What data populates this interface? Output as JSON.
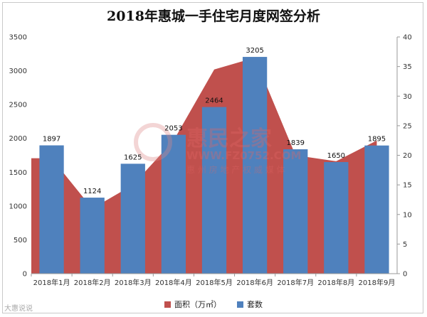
{
  "title": "2018年惠城一手住宅月度网签分析",
  "chart_data": {
    "type": "bar+area",
    "title": "2018年惠城一手住宅月度网签分析",
    "categories": [
      "2018年1月",
      "2018年2月",
      "2018年3月",
      "2018年4月",
      "2018年5月",
      "2018年6月",
      "2018年7月",
      "2018年8月",
      "2018年9月"
    ],
    "series": [
      {
        "name": "套数",
        "type": "bar",
        "axis": "left",
        "color": "#4f81bd",
        "values": [
          1897,
          1124,
          1625,
          2053,
          2464,
          3205,
          1839,
          1650,
          1895
        ]
      },
      {
        "name": "面积（万㎡）",
        "type": "area",
        "axis": "right",
        "color": "#c0504d",
        "values": [
          19.5,
          11,
          15,
          22.5,
          34.5,
          36.5,
          20,
          19,
          22.5
        ]
      }
    ],
    "y_left": {
      "min": 0,
      "max": 3500,
      "ticks": [
        0,
        500,
        1000,
        1500,
        2000,
        2500,
        3000,
        3500
      ]
    },
    "y_right": {
      "min": 0,
      "max": 40,
      "ticks": [
        0,
        5,
        10,
        15,
        20,
        25,
        30,
        35,
        40
      ]
    },
    "legend": {
      "position": "bottom",
      "items": [
        "面积（万㎡）",
        "套数"
      ]
    },
    "grid": false
  },
  "watermark": {
    "brand": "惠民之家",
    "url": "WWW.FZ0752.COM",
    "tagline": "惠 州 房 地 产 权 威 媒 体"
  },
  "footer_watermark": "大惠说说"
}
